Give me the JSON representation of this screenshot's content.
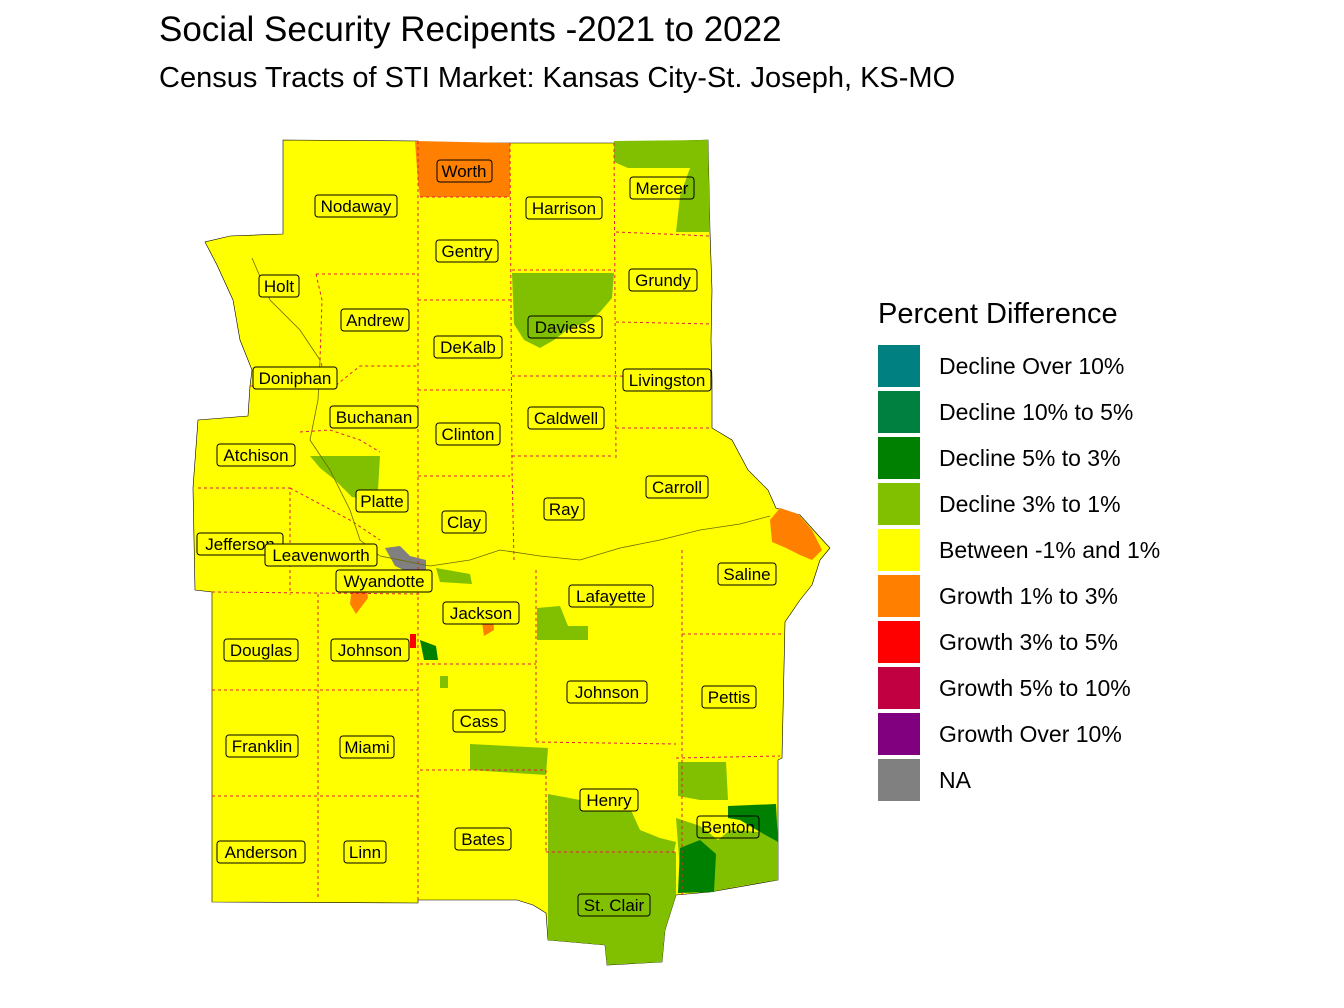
{
  "title": "Social Security Recipents -2021 to 2022",
  "subtitle": "Census Tracts of STI Market: Kansas City-St. Joseph, KS-MO",
  "legend": {
    "title": "Percent Difference",
    "items": [
      {
        "label": "Decline Over 10%",
        "color": "#008080"
      },
      {
        "label": "Decline 10% to 5%",
        "color": "#008040"
      },
      {
        "label": "Decline 5% to 3%",
        "color": "#008000"
      },
      {
        "label": "Decline 3% to 1%",
        "color": "#80C000"
      },
      {
        "label": "Between -1% and 1%",
        "color": "#FFFF00"
      },
      {
        "label": "Growth 1% to 3%",
        "color": "#FF8000"
      },
      {
        "label": "Growth 3% to 5%",
        "color": "#FF0000"
      },
      {
        "label": "Growth 5% to 10%",
        "color": "#C00040"
      },
      {
        "label": "Growth Over 10%",
        "color": "#800080"
      },
      {
        "label": "NA",
        "color": "#808080"
      }
    ]
  },
  "counties": [
    {
      "name": "Worth",
      "category": "Growth 1% to 3%"
    },
    {
      "name": "Nodaway",
      "category": "Between -1% and 1%"
    },
    {
      "name": "Harrison",
      "category": "Between -1% and 1%"
    },
    {
      "name": "Mercer",
      "category": "Decline 3% to 1%"
    },
    {
      "name": "Gentry",
      "category": "Between -1% and 1%"
    },
    {
      "name": "Holt",
      "category": "Between -1% and 1%"
    },
    {
      "name": "Grundy",
      "category": "Between -1% and 1%"
    },
    {
      "name": "Andrew",
      "category": "Between -1% and 1%"
    },
    {
      "name": "Daviess",
      "category": "Decline 3% to 1%"
    },
    {
      "name": "DeKalb",
      "category": "Between -1% and 1%"
    },
    {
      "name": "Doniphan",
      "category": "Between -1% and 1%"
    },
    {
      "name": "Livingston",
      "category": "Between -1% and 1%"
    },
    {
      "name": "Buchanan",
      "category": "Between -1% and 1%"
    },
    {
      "name": "Caldwell",
      "category": "Between -1% and 1%"
    },
    {
      "name": "Clinton",
      "category": "Between -1% and 1%"
    },
    {
      "name": "Atchison",
      "category": "Between -1% and 1%"
    },
    {
      "name": "Carroll",
      "category": "Between -1% and 1%"
    },
    {
      "name": "Platte",
      "category": "Between -1% and 1%"
    },
    {
      "name": "Ray",
      "category": "Between -1% and 1%"
    },
    {
      "name": "Clay",
      "category": "Between -1% and 1%"
    },
    {
      "name": "Jefferson",
      "category": "Between -1% and 1%"
    },
    {
      "name": "Leavenworth",
      "category": "Between -1% and 1%"
    },
    {
      "name": "Saline",
      "category": "Between -1% and 1%"
    },
    {
      "name": "Wyandotte",
      "category": "Between -1% and 1%"
    },
    {
      "name": "Lafayette",
      "category": "Between -1% and 1%"
    },
    {
      "name": "Jackson",
      "category": "Between -1% and 1%"
    },
    {
      "name": "Douglas",
      "category": "Between -1% and 1%"
    },
    {
      "name": "Johnson",
      "category": "Between -1% and 1%"
    },
    {
      "name": "Johnson",
      "category": "Between -1% and 1%"
    },
    {
      "name": "Pettis",
      "category": "Between -1% and 1%"
    },
    {
      "name": "Cass",
      "category": "Between -1% and 1%"
    },
    {
      "name": "Franklin",
      "category": "Between -1% and 1%"
    },
    {
      "name": "Miami",
      "category": "Between -1% and 1%"
    },
    {
      "name": "Henry",
      "category": "Between -1% and 1%"
    },
    {
      "name": "Benton",
      "category": "Decline 3% to 1%"
    },
    {
      "name": "Bates",
      "category": "Between -1% and 1%"
    },
    {
      "name": "Anderson",
      "category": "Between -1% and 1%"
    },
    {
      "name": "Linn",
      "category": "Between -1% and 1%"
    },
    {
      "name": "St. Clair",
      "category": "Decline 3% to 1%"
    }
  ]
}
